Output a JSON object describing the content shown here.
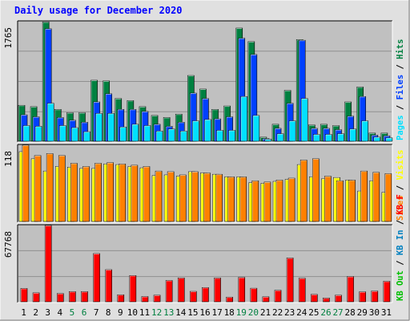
{
  "title": "Daily usage for December 2020",
  "colors": {
    "hits": "#008040",
    "files": "#0040ff",
    "pages": "#00e0ff",
    "visits": "#ffff00",
    "sites": "#ff8000",
    "kbin": "#0080c0",
    "kbout": "#00c000",
    "kbf": "#ff0000",
    "panel_bg": "#c0c0c0",
    "frame_bg": "#e0e0e0"
  },
  "chart_data": [
    {
      "type": "bar",
      "panel": "hits-files-pages",
      "ymax_label": "1765",
      "legend": [
        {
          "text": "Hits",
          "color": "#008040"
        },
        {
          "text": "Files",
          "color": "#0040ff"
        },
        {
          "text": "Pages",
          "color": "#00e0ff"
        }
      ],
      "ylim": [
        0,
        1765
      ],
      "categories": [
        "1",
        "2",
        "3",
        "4",
        "5",
        "6",
        "7",
        "8",
        "9",
        "10",
        "11",
        "12",
        "13",
        "14",
        "15",
        "16",
        "17",
        "18",
        "19",
        "20",
        "21",
        "22",
        "23",
        "24",
        "25",
        "26",
        "27",
        "28",
        "29",
        "30",
        "31"
      ],
      "weekend_days": [
        "5",
        "6",
        "12",
        "13",
        "19",
        "20",
        "26",
        "27"
      ],
      "series": [
        {
          "name": "Hits",
          "values": [
            530,
            510,
            1760,
            470,
            420,
            420,
            900,
            890,
            630,
            600,
            510,
            380,
            350,
            400,
            970,
            770,
            470,
            520,
            1670,
            1470,
            60,
            250,
            750,
            1500,
            240,
            250,
            230,
            580,
            800,
            120,
            120
          ]
        },
        {
          "name": "Files",
          "values": [
            390,
            360,
            1660,
            350,
            310,
            280,
            580,
            700,
            470,
            470,
            440,
            250,
            220,
            280,
            710,
            630,
            330,
            360,
            1520,
            1280,
            40,
            190,
            560,
            1490,
            190,
            190,
            170,
            370,
            660,
            90,
            80
          ]
        },
        {
          "name": "Pages",
          "values": [
            230,
            220,
            560,
            230,
            200,
            140,
            410,
            410,
            210,
            250,
            230,
            150,
            180,
            150,
            300,
            320,
            160,
            160,
            660,
            380,
            30,
            110,
            300,
            630,
            100,
            100,
            110,
            180,
            300,
            60,
            50
          ]
        }
      ]
    },
    {
      "type": "bar",
      "panel": "visits-sites",
      "ymax_label": "118",
      "legend": [
        {
          "text": "Visits",
          "color": "#ffff00"
        },
        {
          "text": "Sites",
          "color": "#ff8000"
        }
      ],
      "ylim": [
        0,
        118
      ],
      "categories": [
        "1",
        "2",
        "3",
        "4",
        "5",
        "6",
        "7",
        "8",
        "9",
        "10",
        "11",
        "12",
        "13",
        "14",
        "15",
        "16",
        "17",
        "18",
        "19",
        "20",
        "21",
        "22",
        "23",
        "24",
        "25",
        "26",
        "27",
        "28",
        "29",
        "30",
        "31"
      ],
      "series": [
        {
          "name": "Visits",
          "values": [
            108,
            97,
            78,
            85,
            84,
            82,
            82,
            89,
            88,
            85,
            83,
            71,
            72,
            70,
            77,
            75,
            73,
            69,
            69,
            60,
            59,
            62,
            65,
            88,
            69,
            66,
            68,
            64,
            47,
            63,
            45
          ]
        },
        {
          "name": "Sites",
          "values": [
            118,
            102,
            105,
            102,
            90,
            85,
            90,
            91,
            89,
            87,
            85,
            78,
            77,
            72,
            77,
            75,
            73,
            69,
            69,
            63,
            61,
            64,
            67,
            95,
            97,
            70,
            63,
            64,
            78,
            76,
            74
          ]
        }
      ]
    },
    {
      "type": "bar",
      "panel": "kbytes",
      "ymax_label": "67768",
      "legend": [
        {
          "text": "KB F",
          "color": "#ff0000"
        },
        {
          "text": "KB In",
          "color": "#0080c0"
        },
        {
          "text": "KB Out",
          "color": "#00c000"
        }
      ],
      "ylim": [
        0,
        67768
      ],
      "categories": [
        "1",
        "2",
        "3",
        "4",
        "5",
        "6",
        "7",
        "8",
        "9",
        "10",
        "11",
        "12",
        "13",
        "14",
        "15",
        "16",
        "17",
        "18",
        "19",
        "20",
        "21",
        "22",
        "23",
        "24",
        "25",
        "26",
        "27",
        "28",
        "29",
        "30",
        "31"
      ],
      "series": [
        {
          "name": "KB F",
          "values": [
            11800,
            7900,
            67768,
            7300,
            9000,
            9000,
            42800,
            28500,
            6200,
            23300,
            4600,
            5800,
            18900,
            21200,
            9200,
            12600,
            21100,
            4100,
            21600,
            12000,
            4400,
            10200,
            38900,
            20900,
            6500,
            3300,
            5800,
            22400,
            8800,
            9500,
            18200
          ]
        }
      ]
    }
  ]
}
